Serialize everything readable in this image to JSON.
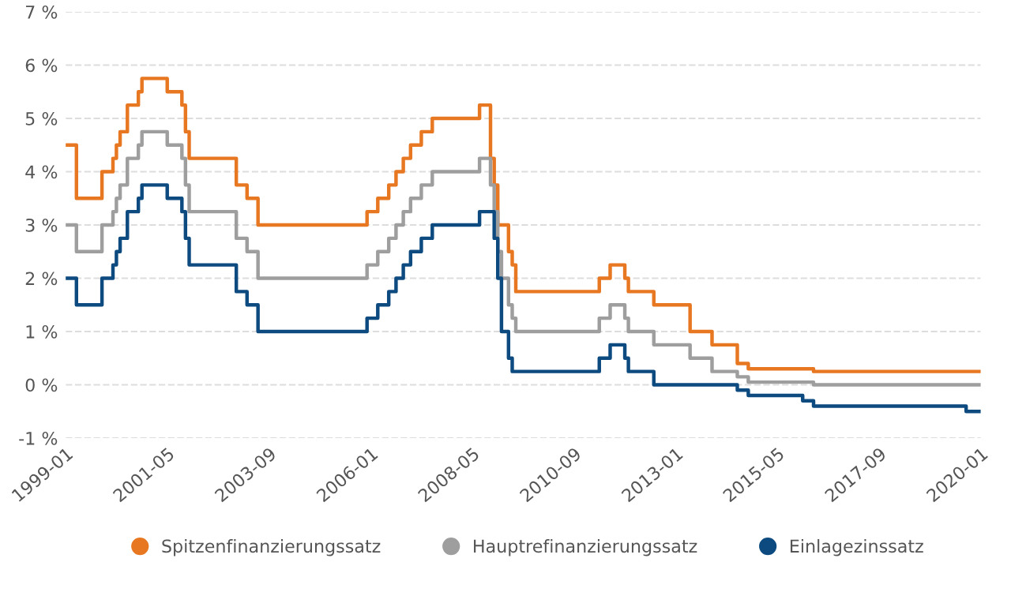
{
  "chart_data": {
    "type": "step",
    "x": [
      "1999-01",
      "1999-04",
      "1999-11",
      "2000-02",
      "2000-03",
      "2000-04",
      "2000-06",
      "2000-09",
      "2000-10",
      "2001-05",
      "2001-09",
      "2001-10",
      "2001-11",
      "2002-12",
      "2003-03",
      "2003-06",
      "2005-12",
      "2006-03",
      "2006-06",
      "2006-08",
      "2006-10",
      "2006-12",
      "2007-03",
      "2007-06",
      "2008-07",
      "2008-10",
      "2008-11",
      "2008-12",
      "2009-01",
      "2009-03",
      "2009-04",
      "2009-05",
      "2011-04",
      "2011-07",
      "2011-11",
      "2011-12",
      "2012-07",
      "2013-05",
      "2013-11",
      "2014-06",
      "2014-09",
      "2015-12",
      "2016-03",
      "2019-09",
      "2020-01"
    ],
    "series": [
      {
        "name": "Spitzenfinanzierungssatz",
        "color": "#e87722",
        "values": [
          4.5,
          3.5,
          4.0,
          4.25,
          4.5,
          4.75,
          5.25,
          5.5,
          5.75,
          5.5,
          5.25,
          4.75,
          4.25,
          3.75,
          3.5,
          3.0,
          3.25,
          3.5,
          3.75,
          4.0,
          4.25,
          4.5,
          4.75,
          5.0,
          5.25,
          4.25,
          3.75,
          3.0,
          3.0,
          2.5,
          2.25,
          1.75,
          2.0,
          2.25,
          2.0,
          1.75,
          1.5,
          1.0,
          0.75,
          0.4,
          0.3,
          0.3,
          0.25,
          0.25,
          0.25
        ]
      },
      {
        "name": "Hauptrefinanzierungssatz",
        "color": "#9e9e9e",
        "values": [
          3.0,
          2.5,
          3.0,
          3.25,
          3.5,
          3.75,
          4.25,
          4.5,
          4.75,
          4.5,
          4.25,
          3.75,
          3.25,
          2.75,
          2.5,
          2.0,
          2.25,
          2.5,
          2.75,
          3.0,
          3.25,
          3.5,
          3.75,
          4.0,
          4.25,
          3.75,
          3.25,
          2.5,
          2.0,
          1.5,
          1.25,
          1.0,
          1.25,
          1.5,
          1.25,
          1.0,
          0.75,
          0.5,
          0.25,
          0.15,
          0.05,
          0.05,
          0.0,
          0.0,
          0.0
        ]
      },
      {
        "name": "Einlagezinssatz",
        "color": "#0d4a80",
        "values": [
          2.0,
          1.5,
          2.0,
          2.25,
          2.5,
          2.75,
          3.25,
          3.5,
          3.75,
          3.5,
          3.25,
          2.75,
          2.25,
          1.75,
          1.5,
          1.0,
          1.25,
          1.5,
          1.75,
          2.0,
          2.25,
          2.5,
          2.75,
          3.0,
          3.25,
          3.25,
          2.75,
          2.0,
          1.0,
          0.5,
          0.25,
          0.25,
          0.5,
          0.75,
          0.5,
          0.25,
          0.0,
          0.0,
          0.0,
          -0.1,
          -0.2,
          -0.3,
          -0.4,
          -0.5,
          -0.5
        ]
      }
    ],
    "xlim": [
      "1999-01",
      "2020-01"
    ],
    "xticks": [
      "1999-01",
      "2001-05",
      "2003-09",
      "2006-01",
      "2008-05",
      "2010-09",
      "2013-01",
      "2015-05",
      "2017-09",
      "2020-01"
    ],
    "ylim": [
      -1,
      7
    ],
    "yticks": [
      {
        "value": -1,
        "label": "-1 %"
      },
      {
        "value": 0,
        "label": "0 %"
      },
      {
        "value": 1,
        "label": "1 %"
      },
      {
        "value": 2,
        "label": "2 %"
      },
      {
        "value": 3,
        "label": "3 %"
      },
      {
        "value": 4,
        "label": "4 %"
      },
      {
        "value": 5,
        "label": "5 %"
      },
      {
        "value": 6,
        "label": "6 %"
      },
      {
        "value": 7,
        "label": "7 %"
      }
    ],
    "grid": "y",
    "legend": "bottom",
    "marker": "none",
    "line_style": "solid"
  }
}
